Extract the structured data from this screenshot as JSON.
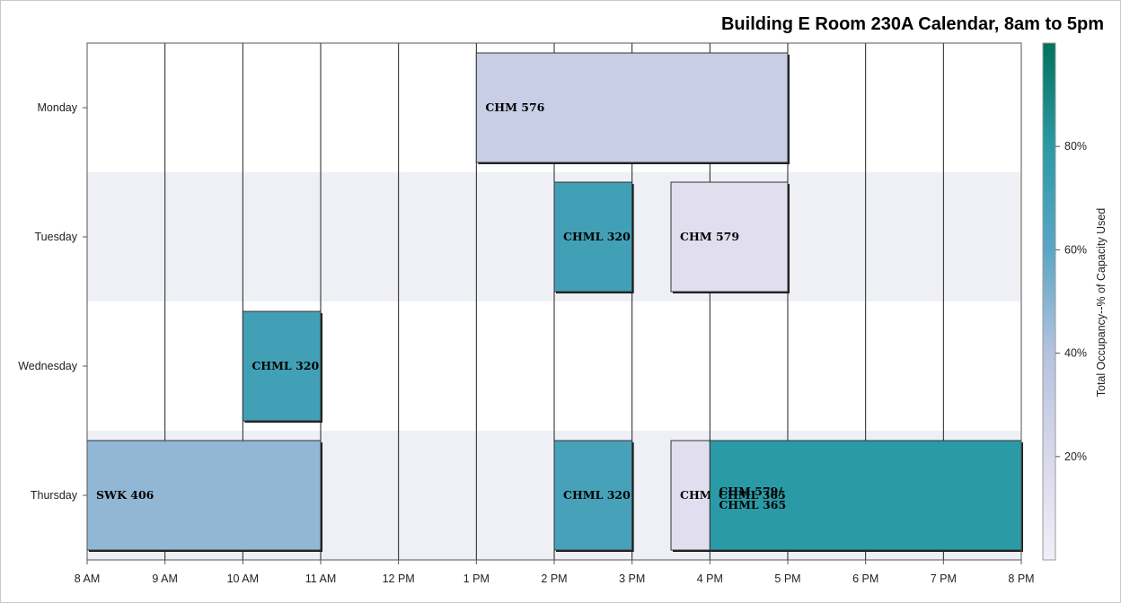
{
  "title": "Building E Room 230A Calendar, 8am to 5pm",
  "chart_data": {
    "type": "bar",
    "subtype": "calendar-timeline",
    "title": "Building E Room 230A Calendar, 8am to 5pm",
    "y_categories": [
      "Monday",
      "Tuesday",
      "Wednesday",
      "Thursday"
    ],
    "x_ticks": [
      {
        "hour": 8,
        "label": "8 AM"
      },
      {
        "hour": 9,
        "label": "9 AM"
      },
      {
        "hour": 10,
        "label": "10 AM"
      },
      {
        "hour": 11,
        "label": "11 AM"
      },
      {
        "hour": 12,
        "label": "12 PM"
      },
      {
        "hour": 13,
        "label": "1 PM"
      },
      {
        "hour": 14,
        "label": "2 PM"
      },
      {
        "hour": 15,
        "label": "3 PM"
      },
      {
        "hour": 16,
        "label": "4 PM"
      },
      {
        "hour": 17,
        "label": "5 PM"
      },
      {
        "hour": 18,
        "label": "6 PM"
      },
      {
        "hour": 19,
        "label": "7 PM"
      },
      {
        "hour": 20,
        "label": "8 PM"
      }
    ],
    "xlim": [
      8,
      20
    ],
    "grid": true,
    "events": [
      {
        "day": "Monday",
        "label": "CHM 576",
        "start": 13,
        "end": 17,
        "occupancy": 30
      },
      {
        "day": "Tuesday",
        "label": "CHML 320",
        "start": 14,
        "end": 15,
        "occupancy": 70
      },
      {
        "day": "Tuesday",
        "label": "CHM 579",
        "start": 15.5,
        "end": 17,
        "occupancy": 14
      },
      {
        "day": "Wednesday",
        "label": "CHML 320",
        "start": 10,
        "end": 11,
        "occupancy": 70
      },
      {
        "day": "Thursday",
        "label": "SWK 406",
        "start": 8,
        "end": 11,
        "occupancy": 48
      },
      {
        "day": "Thursday",
        "label": "CHML 320",
        "start": 14,
        "end": 15,
        "occupancy": 68
      },
      {
        "day": "Thursday",
        "label": "CHM 579",
        "start": 15.5,
        "end": 16,
        "occupancy": 14
      },
      {
        "day": "Thursday",
        "label": "CHM 579/ CHML 365",
        "start": 16,
        "end": 20,
        "occupancy": 80
      }
    ],
    "overlay_text": {
      "label": "CHML 365",
      "day": "Thursday",
      "hour": 16.1
    },
    "colorbar": {
      "label": "Total Occupancy--% of Capacity Used",
      "ticks": [
        {
          "value": 20,
          "label": "20%"
        },
        {
          "value": 40,
          "label": "40%"
        },
        {
          "value": 60,
          "label": "60%"
        },
        {
          "value": 80,
          "label": "80%"
        }
      ],
      "range": [
        0,
        100
      ],
      "colors": [
        "#f2eef7",
        "#d9d9ec",
        "#b5c3df",
        "#5aa6c6",
        "#2a9aa6",
        "#00725c"
      ]
    },
    "band_color": "#eef0f5"
  }
}
